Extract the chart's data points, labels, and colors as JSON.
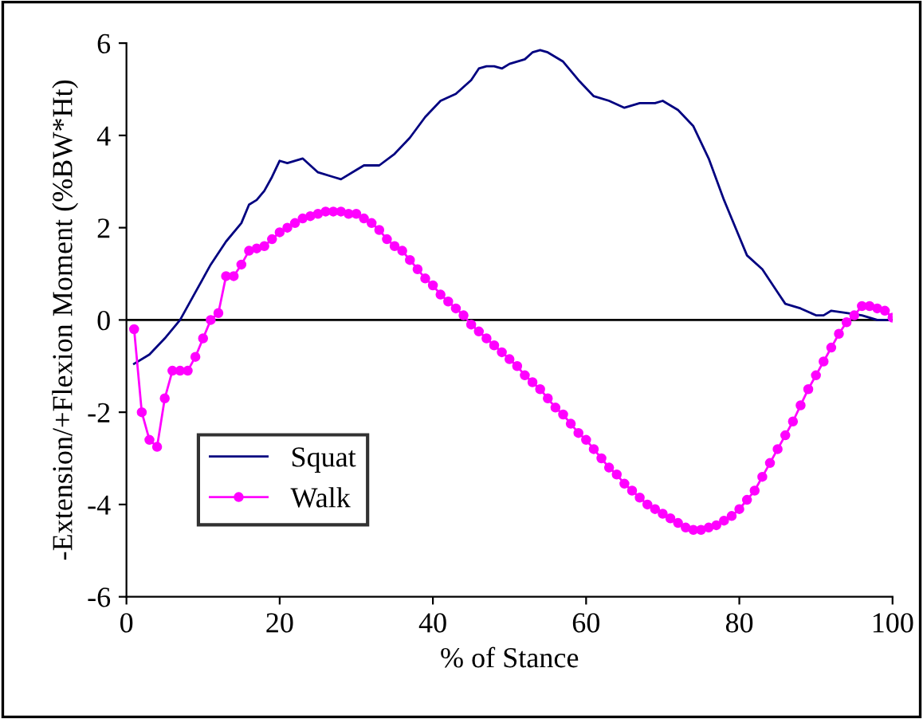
{
  "chart_data": {
    "type": "line",
    "xlabel": "% of Stance",
    "ylabel": "-Extension/+Flexion Moment (%BW*Ht)",
    "xlim": [
      0,
      100
    ],
    "ylim": [
      -6,
      6
    ],
    "xticks": [
      0,
      20,
      40,
      60,
      80,
      100
    ],
    "yticks": [
      -6,
      -4,
      -2,
      0,
      2,
      4,
      6
    ],
    "grid": false,
    "legend": "lower left",
    "ref_lines": [
      {
        "axis": "y",
        "value": 0,
        "color": "#000000"
      }
    ],
    "series": [
      {
        "name": "Squat",
        "color": "#000080",
        "marker": "none",
        "x": [
          1,
          3,
          5,
          7,
          9,
          11,
          13,
          15,
          16,
          17,
          18,
          19,
          20,
          21,
          23,
          25,
          27,
          28,
          30,
          31,
          33,
          35,
          37,
          39,
          41,
          43,
          45,
          46,
          47,
          48,
          49,
          50,
          52,
          53,
          54,
          55,
          57,
          59,
          61,
          63,
          65,
          67,
          69,
          70,
          72,
          74,
          76,
          78,
          80,
          81,
          83,
          85,
          86,
          88,
          90,
          91,
          92,
          94,
          96,
          98,
          100
        ],
        "values": [
          -0.95,
          -0.75,
          -0.4,
          0.0,
          0.6,
          1.2,
          1.7,
          2.1,
          2.5,
          2.6,
          2.8,
          3.1,
          3.45,
          3.4,
          3.5,
          3.2,
          3.1,
          3.05,
          3.25,
          3.35,
          3.35,
          3.6,
          3.95,
          4.4,
          4.75,
          4.9,
          5.2,
          5.45,
          5.5,
          5.5,
          5.45,
          5.55,
          5.65,
          5.8,
          5.85,
          5.8,
          5.6,
          5.2,
          4.85,
          4.75,
          4.6,
          4.7,
          4.7,
          4.75,
          4.55,
          4.2,
          3.5,
          2.6,
          1.8,
          1.4,
          1.1,
          0.6,
          0.35,
          0.25,
          0.1,
          0.1,
          0.2,
          0.15,
          0.1,
          0.0,
          0.0
        ]
      },
      {
        "name": "Walk",
        "color": "#ff00ff",
        "marker": "circle",
        "x": [
          1,
          2,
          3,
          4,
          5,
          6,
          7,
          8,
          9,
          10,
          11,
          12,
          13,
          14,
          15,
          16,
          17,
          18,
          19,
          20,
          21,
          22,
          23,
          24,
          25,
          26,
          27,
          28,
          29,
          30,
          31,
          32,
          33,
          34,
          35,
          36,
          37,
          38,
          39,
          40,
          41,
          42,
          43,
          44,
          45,
          46,
          47,
          48,
          49,
          50,
          51,
          52,
          53,
          54,
          55,
          56,
          57,
          58,
          59,
          60,
          61,
          62,
          63,
          64,
          65,
          66,
          67,
          68,
          69,
          70,
          71,
          72,
          73,
          74,
          75,
          76,
          77,
          78,
          79,
          80,
          81,
          82,
          83,
          84,
          85,
          86,
          87,
          88,
          89,
          90,
          91,
          92,
          93,
          94,
          95,
          96,
          97,
          98,
          99,
          100
        ],
        "values": [
          -0.2,
          -2.0,
          -2.6,
          -2.75,
          -1.7,
          -1.1,
          -1.1,
          -1.1,
          -0.8,
          -0.4,
          0.0,
          0.15,
          0.95,
          0.95,
          1.2,
          1.5,
          1.55,
          1.6,
          1.75,
          1.9,
          2.0,
          2.1,
          2.2,
          2.25,
          2.3,
          2.35,
          2.35,
          2.35,
          2.3,
          2.3,
          2.2,
          2.1,
          1.95,
          1.75,
          1.6,
          1.5,
          1.3,
          1.1,
          0.9,
          0.75,
          0.55,
          0.4,
          0.25,
          0.1,
          -0.1,
          -0.25,
          -0.4,
          -0.55,
          -0.7,
          -0.85,
          -1.0,
          -1.2,
          -1.35,
          -1.5,
          -1.7,
          -1.9,
          -2.05,
          -2.25,
          -2.45,
          -2.6,
          -2.8,
          -3.0,
          -3.2,
          -3.35,
          -3.55,
          -3.7,
          -3.85,
          -4.0,
          -4.1,
          -4.2,
          -4.3,
          -4.4,
          -4.5,
          -4.55,
          -4.55,
          -4.5,
          -4.45,
          -4.35,
          -4.25,
          -4.1,
          -3.9,
          -3.7,
          -3.4,
          -3.1,
          -2.8,
          -2.5,
          -2.2,
          -1.85,
          -1.5,
          -1.2,
          -0.9,
          -0.6,
          -0.3,
          -0.05,
          0.1,
          0.3,
          0.3,
          0.25,
          0.2,
          0.05
        ]
      }
    ]
  }
}
